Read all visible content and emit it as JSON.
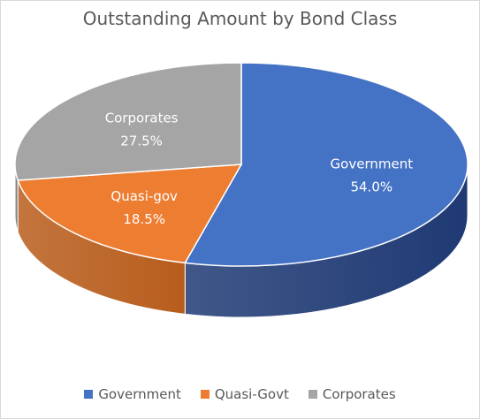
{
  "chart_data": {
    "type": "pie",
    "title": "Outstanding Amount by Bond Class",
    "categories": [
      "Government",
      "Quasi-gov",
      "Corporates"
    ],
    "values": [
      54.0,
      18.5,
      27.5
    ],
    "value_labels": [
      "54.0%",
      "18.5%",
      "27.5%"
    ],
    "legend_labels": [
      "Government",
      "Quasi-Govt",
      "Corporates"
    ],
    "colors": [
      "#4472c4",
      "#ed7d31",
      "#a5a5a5"
    ],
    "side_colors": [
      "#1f3a74",
      "#b85d1c",
      "#7a7a7a"
    ],
    "label_color": "#ffffff",
    "legend_placement": "bottom",
    "style": "3d"
  }
}
